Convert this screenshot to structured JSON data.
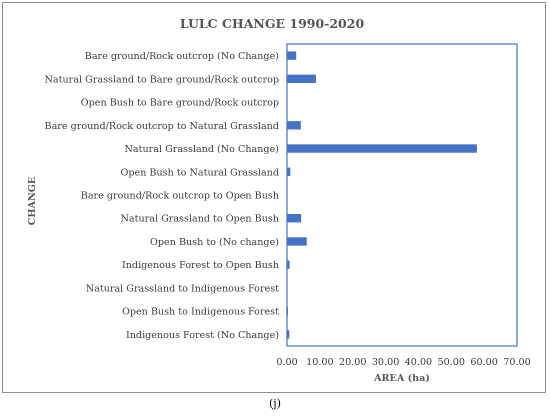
{
  "caption": "(j)",
  "chart_data": {
    "type": "bar",
    "orientation": "horizontal",
    "title": "LULC CHANGE 1990-2020",
    "xlabel": "AREA (ha)",
    "ylabel": "CHANGE",
    "xlim": [
      0,
      70
    ],
    "xticks": [
      "0.00",
      "10.00",
      "20.00",
      "30.00",
      "40.00",
      "50.00",
      "60.00",
      "70.00"
    ],
    "grid": false,
    "bar_color": "#4472c4",
    "categories": [
      "Bare ground/Rock outcrop (No Change)",
      "Natural Grassland to Bare ground/Rock outcrop",
      "Open Bush to Bare ground/Rock outcrop",
      "Bare ground/Rock outcrop to Natural Grassland",
      "Natural Grassland (No Change)",
      "Open Bush to Natural Grassland",
      "Bare ground/Rock outcrop to Open Bush",
      "Natural Grassland to Open Bush",
      "Open Bush to (No change)",
      "Indigenous Forest to Open Bush",
      "Natural Grassland to Indigenous Forest",
      "Open Bush to Indigenous Forest",
      "Indigenous Forest (No Change)"
    ],
    "values": [
      2.8,
      8.8,
      0,
      4.2,
      57.8,
      1.0,
      0,
      4.3,
      6.0,
      0.8,
      0,
      0.3,
      0.7
    ]
  }
}
